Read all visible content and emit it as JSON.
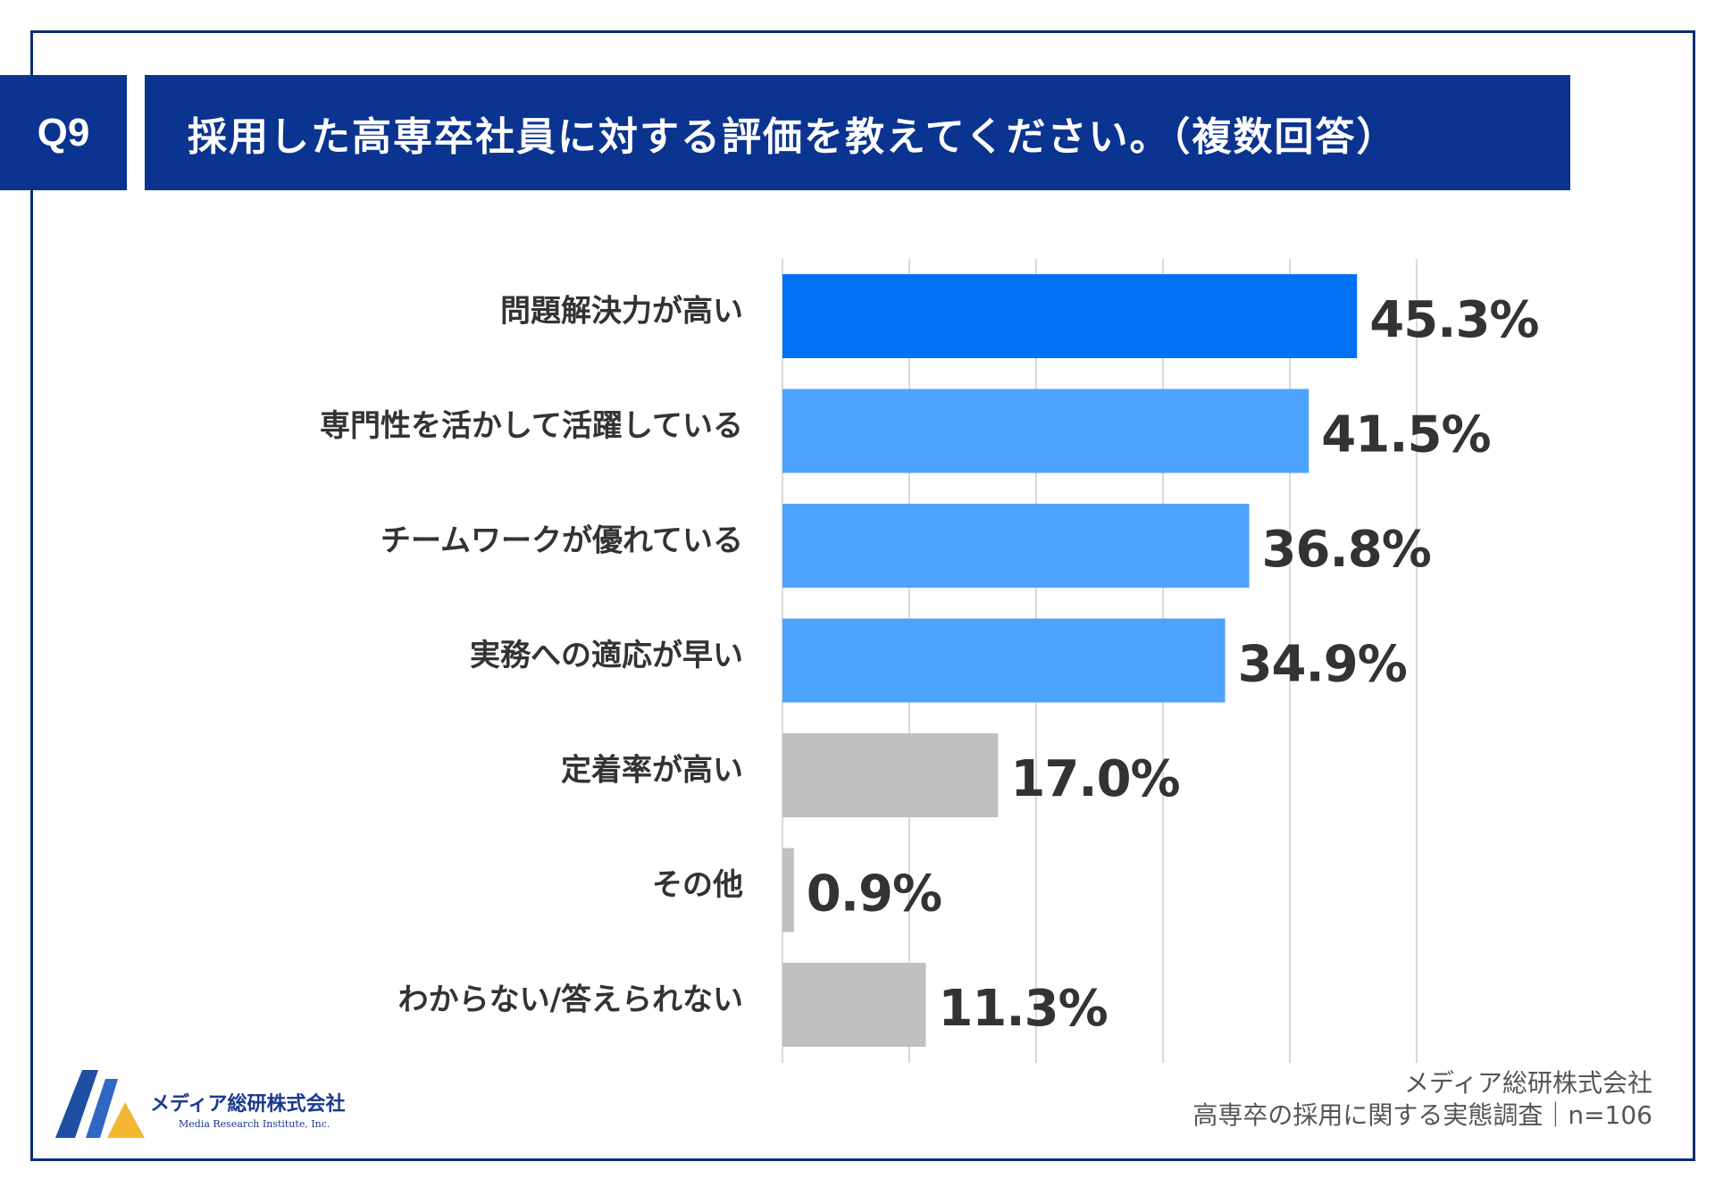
{
  "question": {
    "badge": "Q9",
    "title": "採用した高専卒社員に対する評価を教えてください。（複数回答）"
  },
  "colors": {
    "frame": "#0b2f72",
    "title_bg": "#0b3390",
    "bar_top": "#0070f5",
    "bar_blue": "#4da3fd",
    "bar_gray": "#c0c0c0",
    "grid": "#d9d9d9"
  },
  "chart_data": {
    "type": "bar",
    "orientation": "horizontal",
    "title": "採用した高専卒社員に対する評価を教えてください。（複数回答）",
    "categories": [
      "問題解決力が高い",
      "専門性を活かして活躍している",
      "チームワークが優れている",
      "実務への適応が早い",
      "定着率が高い",
      "その他",
      "わからない/答えられない"
    ],
    "values": [
      45.3,
      41.5,
      36.8,
      34.9,
      17.0,
      0.9,
      11.3
    ],
    "value_labels": [
      "45.3%",
      "41.5%",
      "36.8%",
      "34.9%",
      "17.0%",
      "0.9%",
      "11.3%"
    ],
    "bar_color_groups": [
      "top",
      "blue",
      "blue",
      "blue",
      "gray",
      "gray",
      "gray"
    ],
    "xlim": [
      0,
      50
    ],
    "grid": true,
    "xlabel": "",
    "ylabel": ""
  },
  "footer": {
    "logo_name": "メディア総研株式会社",
    "logo_sub": "Media Research Institute, Inc.",
    "source_line1": "メディア総研株式会社",
    "source_line2": "高専卒の採用に関する実態調査｜n=106"
  }
}
